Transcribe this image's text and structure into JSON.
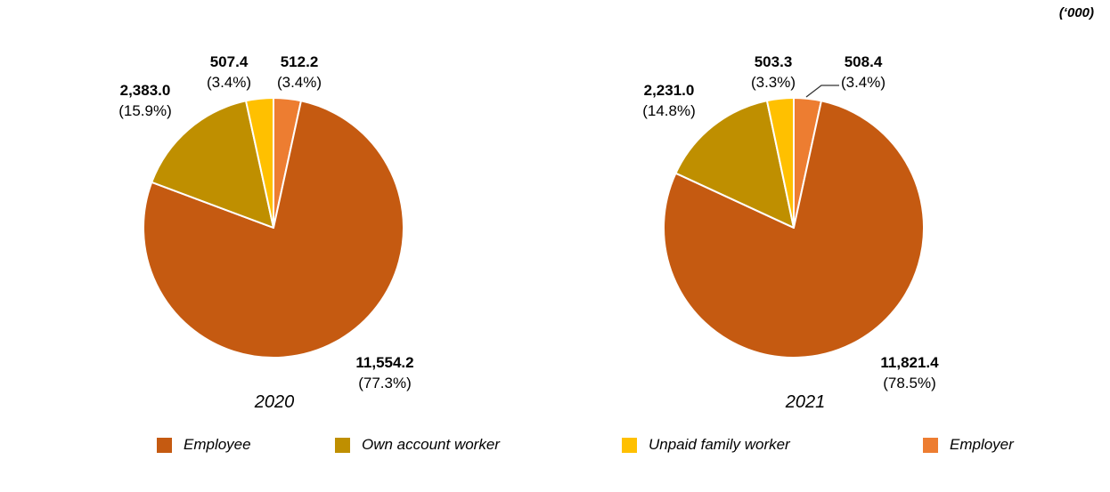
{
  "unit_label": "(‘000)",
  "colors": {
    "employee": "#C55A11",
    "own_account_worker": "#BF8F00",
    "unpaid_family_worker": "#FFC000",
    "employer": "#ED7D31",
    "slice_border": "#FFFFFF",
    "leader_line": "#333333"
  },
  "legend": {
    "items": [
      {
        "key": "employee",
        "label": "Employee"
      },
      {
        "key": "own_account_worker",
        "label": "Own account worker"
      },
      {
        "key": "unpaid_family_worker",
        "label": "Unpaid family worker"
      },
      {
        "key": "employer",
        "label": "Employer"
      }
    ]
  },
  "chart_data": [
    {
      "type": "pie",
      "year": "2020",
      "categories": [
        "Employee",
        "Own account worker",
        "Unpaid family worker",
        "Employer"
      ],
      "values": [
        11554.2,
        2383.0,
        507.4,
        512.2
      ],
      "percents": [
        77.3,
        15.9,
        3.4,
        3.4
      ],
      "labels": {
        "employee": {
          "value": "11,554.2",
          "pct": "(77.3%)"
        },
        "own_account_worker": {
          "value": "2,383.0",
          "pct": "(15.9%)"
        },
        "unpaid_family_worker": {
          "value": "507.4",
          "pct": "(3.4%)"
        },
        "employer": {
          "value": "512.2",
          "pct": "(3.4%)"
        }
      }
    },
    {
      "type": "pie",
      "year": "2021",
      "categories": [
        "Employee",
        "Own account worker",
        "Unpaid family worker",
        "Employer"
      ],
      "values": [
        11821.4,
        2231.0,
        503.3,
        508.4
      ],
      "percents": [
        78.5,
        14.8,
        3.3,
        3.4
      ],
      "labels": {
        "employee": {
          "value": "11,821.4",
          "pct": "(78.5%)"
        },
        "own_account_worker": {
          "value": "2,231.0",
          "pct": "(14.8%)"
        },
        "unpaid_family_worker": {
          "value": "503.3",
          "pct": "(3.3%)"
        },
        "employer": {
          "value": "508.4",
          "pct": "(3.4%)"
        }
      }
    }
  ]
}
